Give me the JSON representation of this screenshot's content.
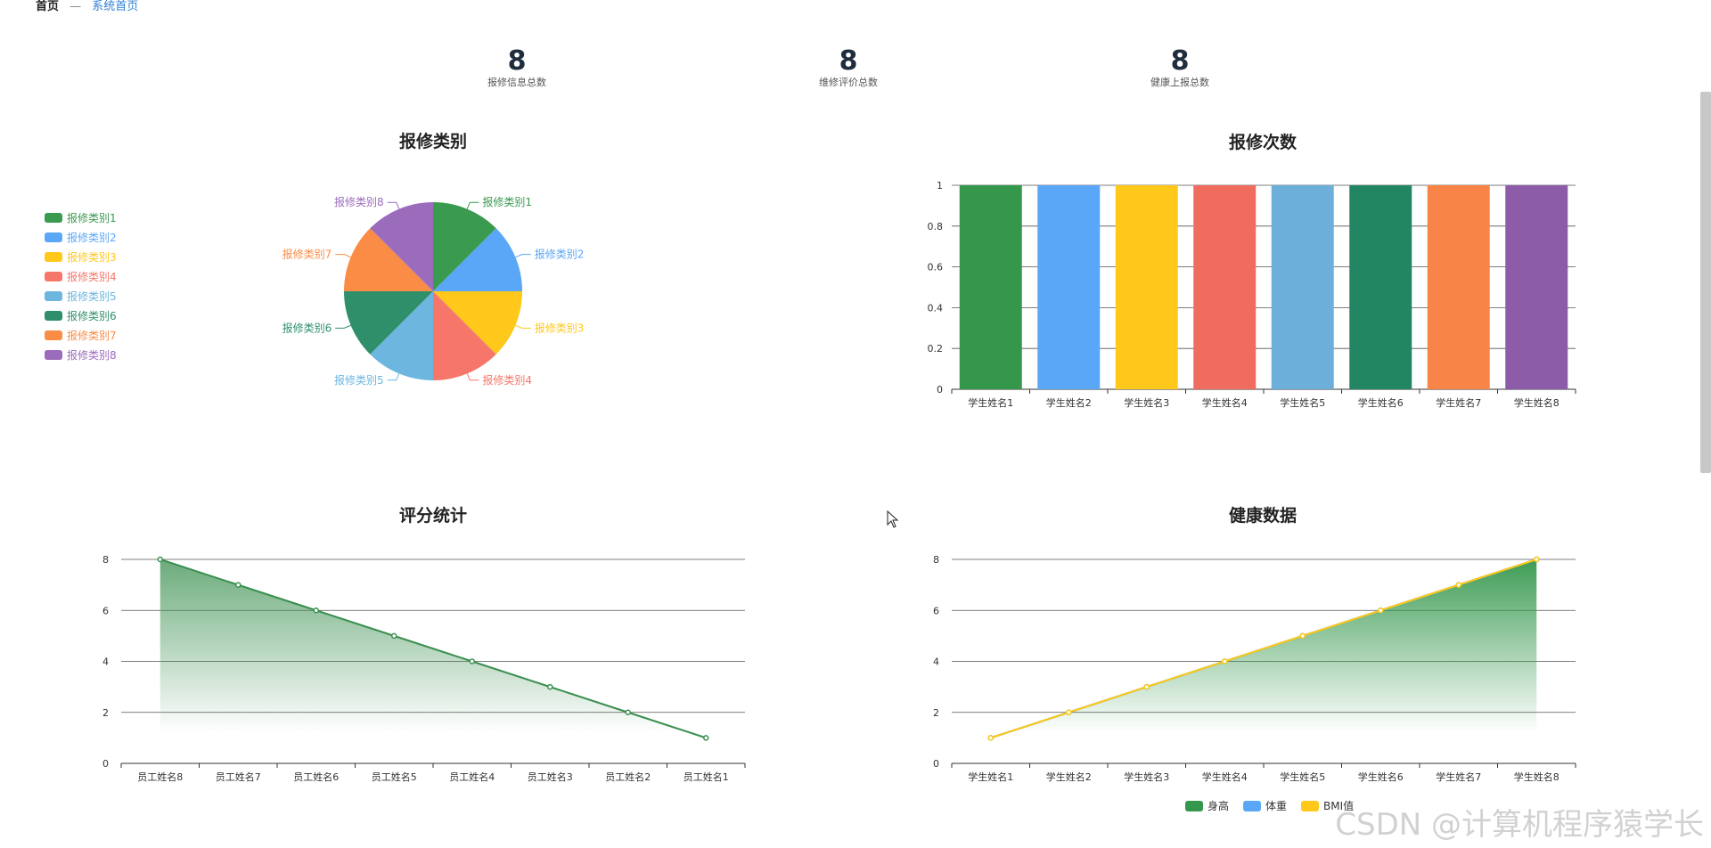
{
  "breadcrumb": {
    "home": "首页",
    "separator": "—",
    "current": "系统首页"
  },
  "stats": [
    {
      "value": "8",
      "label": "报修信息总数"
    },
    {
      "value": "8",
      "label": "维修评价总数"
    },
    {
      "value": "8",
      "label": "健康上报总数"
    }
  ],
  "watermark": "CSDN @计算机程序猿学长",
  "chart_data": [
    {
      "type": "pie",
      "title": "报修类别",
      "legend_position": "left",
      "categories": [
        "报修类别1",
        "报修类别2",
        "报修类别3",
        "报修类别4",
        "报修类别5",
        "报修类别6",
        "报修类别7",
        "报修类别8"
      ],
      "values": [
        1,
        1,
        1,
        1,
        1,
        1,
        1,
        1
      ],
      "colors": [
        "#3a9a4f",
        "#5aa7f7",
        "#ffc81a",
        "#f6766a",
        "#6cb6e0",
        "#2f8f6a",
        "#fa8c46",
        "#9b6cbc"
      ]
    },
    {
      "type": "bar",
      "title": "报修次数",
      "categories": [
        "学生姓名1",
        "学生姓名2",
        "学生姓名3",
        "学生姓名4",
        "学生姓名5",
        "学生姓名6",
        "学生姓名7",
        "学生姓名8"
      ],
      "values": [
        1,
        1,
        1,
        1,
        1,
        1,
        1,
        1
      ],
      "colors": [
        "#34974c",
        "#5aa7f7",
        "#ffc81a",
        "#ef6c5f",
        "#6cb0da",
        "#238663",
        "#f98447",
        "#8c5ca8"
      ],
      "ylim": [
        0,
        1
      ],
      "yticks": [
        "0",
        "0.2",
        "0.4",
        "0.6",
        "0.8",
        "1"
      ],
      "grid": true
    },
    {
      "type": "area",
      "title": "评分统计",
      "categories": [
        "员工姓名8",
        "员工姓名7",
        "员工姓名6",
        "员工姓名5",
        "员工姓名4",
        "员工姓名3",
        "员工姓名2",
        "员工姓名1"
      ],
      "values": [
        8,
        7,
        6,
        5,
        4,
        3,
        2,
        1
      ],
      "color": "#3a8f4f",
      "ylim": [
        0,
        8
      ],
      "yticks": [
        "0",
        "2",
        "4",
        "6",
        "8"
      ],
      "grid": true
    },
    {
      "type": "line",
      "title": "健康数据",
      "categories": [
        "学生姓名1",
        "学生姓名2",
        "学生姓名3",
        "学生姓名4",
        "学生姓名5",
        "学生姓名6",
        "学生姓名7",
        "学生姓名8"
      ],
      "series": [
        {
          "name": "身高",
          "values": [
            1,
            2,
            3,
            4,
            5,
            6,
            7,
            8
          ],
          "color": "#34974c"
        },
        {
          "name": "体重",
          "values": [
            1,
            2,
            3,
            4,
            5,
            6,
            7,
            8
          ],
          "color": "#5aa7f7"
        },
        {
          "name": "BMI值",
          "values": [
            1,
            2,
            3,
            4,
            5,
            6,
            7,
            8
          ],
          "color": "#ffc81a"
        }
      ],
      "ylim": [
        0,
        8
      ],
      "yticks": [
        "0",
        "2",
        "4",
        "6",
        "8"
      ],
      "grid": true,
      "legend_position": "bottom-right"
    }
  ]
}
